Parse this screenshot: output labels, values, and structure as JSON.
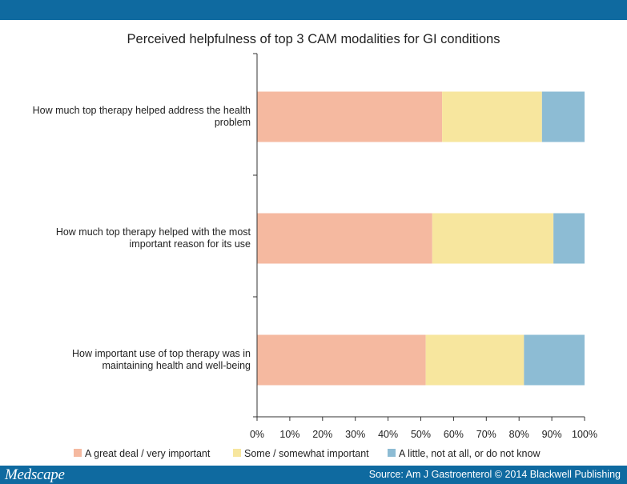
{
  "footer": {
    "logo": "Medscape",
    "source": "Source: Am J Gastroenterol © 2014 Blackwell Publishing"
  },
  "chart_data": {
    "type": "bar",
    "orientation": "horizontal",
    "stacked": true,
    "title": "Perceived helpfulness of top 3 CAM modalities for GI conditions",
    "categories": [
      [
        "How much top therapy helped address the health",
        "problem"
      ],
      [
        "How much top therapy helped with the most",
        "important reason for its use"
      ],
      [
        "How important use of top therapy was in",
        "maintaining health and well-being"
      ]
    ],
    "series": [
      {
        "name": "A great deal / very important",
        "color": "#f5b9a0",
        "values": [
          56.5,
          53.5,
          51.5
        ]
      },
      {
        "name": "Some / somewhat important",
        "color": "#f7e69e",
        "values": [
          30.5,
          37.0,
          30.0
        ]
      },
      {
        "name": "A little, not at all, or do not know",
        "color": "#8dbcd4",
        "values": [
          13.0,
          9.5,
          18.5
        ]
      }
    ],
    "xlim": [
      0,
      100
    ],
    "xticks": [
      "0%",
      "10%",
      "20%",
      "30%",
      "40%",
      "50%",
      "60%",
      "70%",
      "80%",
      "90%",
      "100%"
    ],
    "legend_position": "bottom",
    "grid": false
  }
}
